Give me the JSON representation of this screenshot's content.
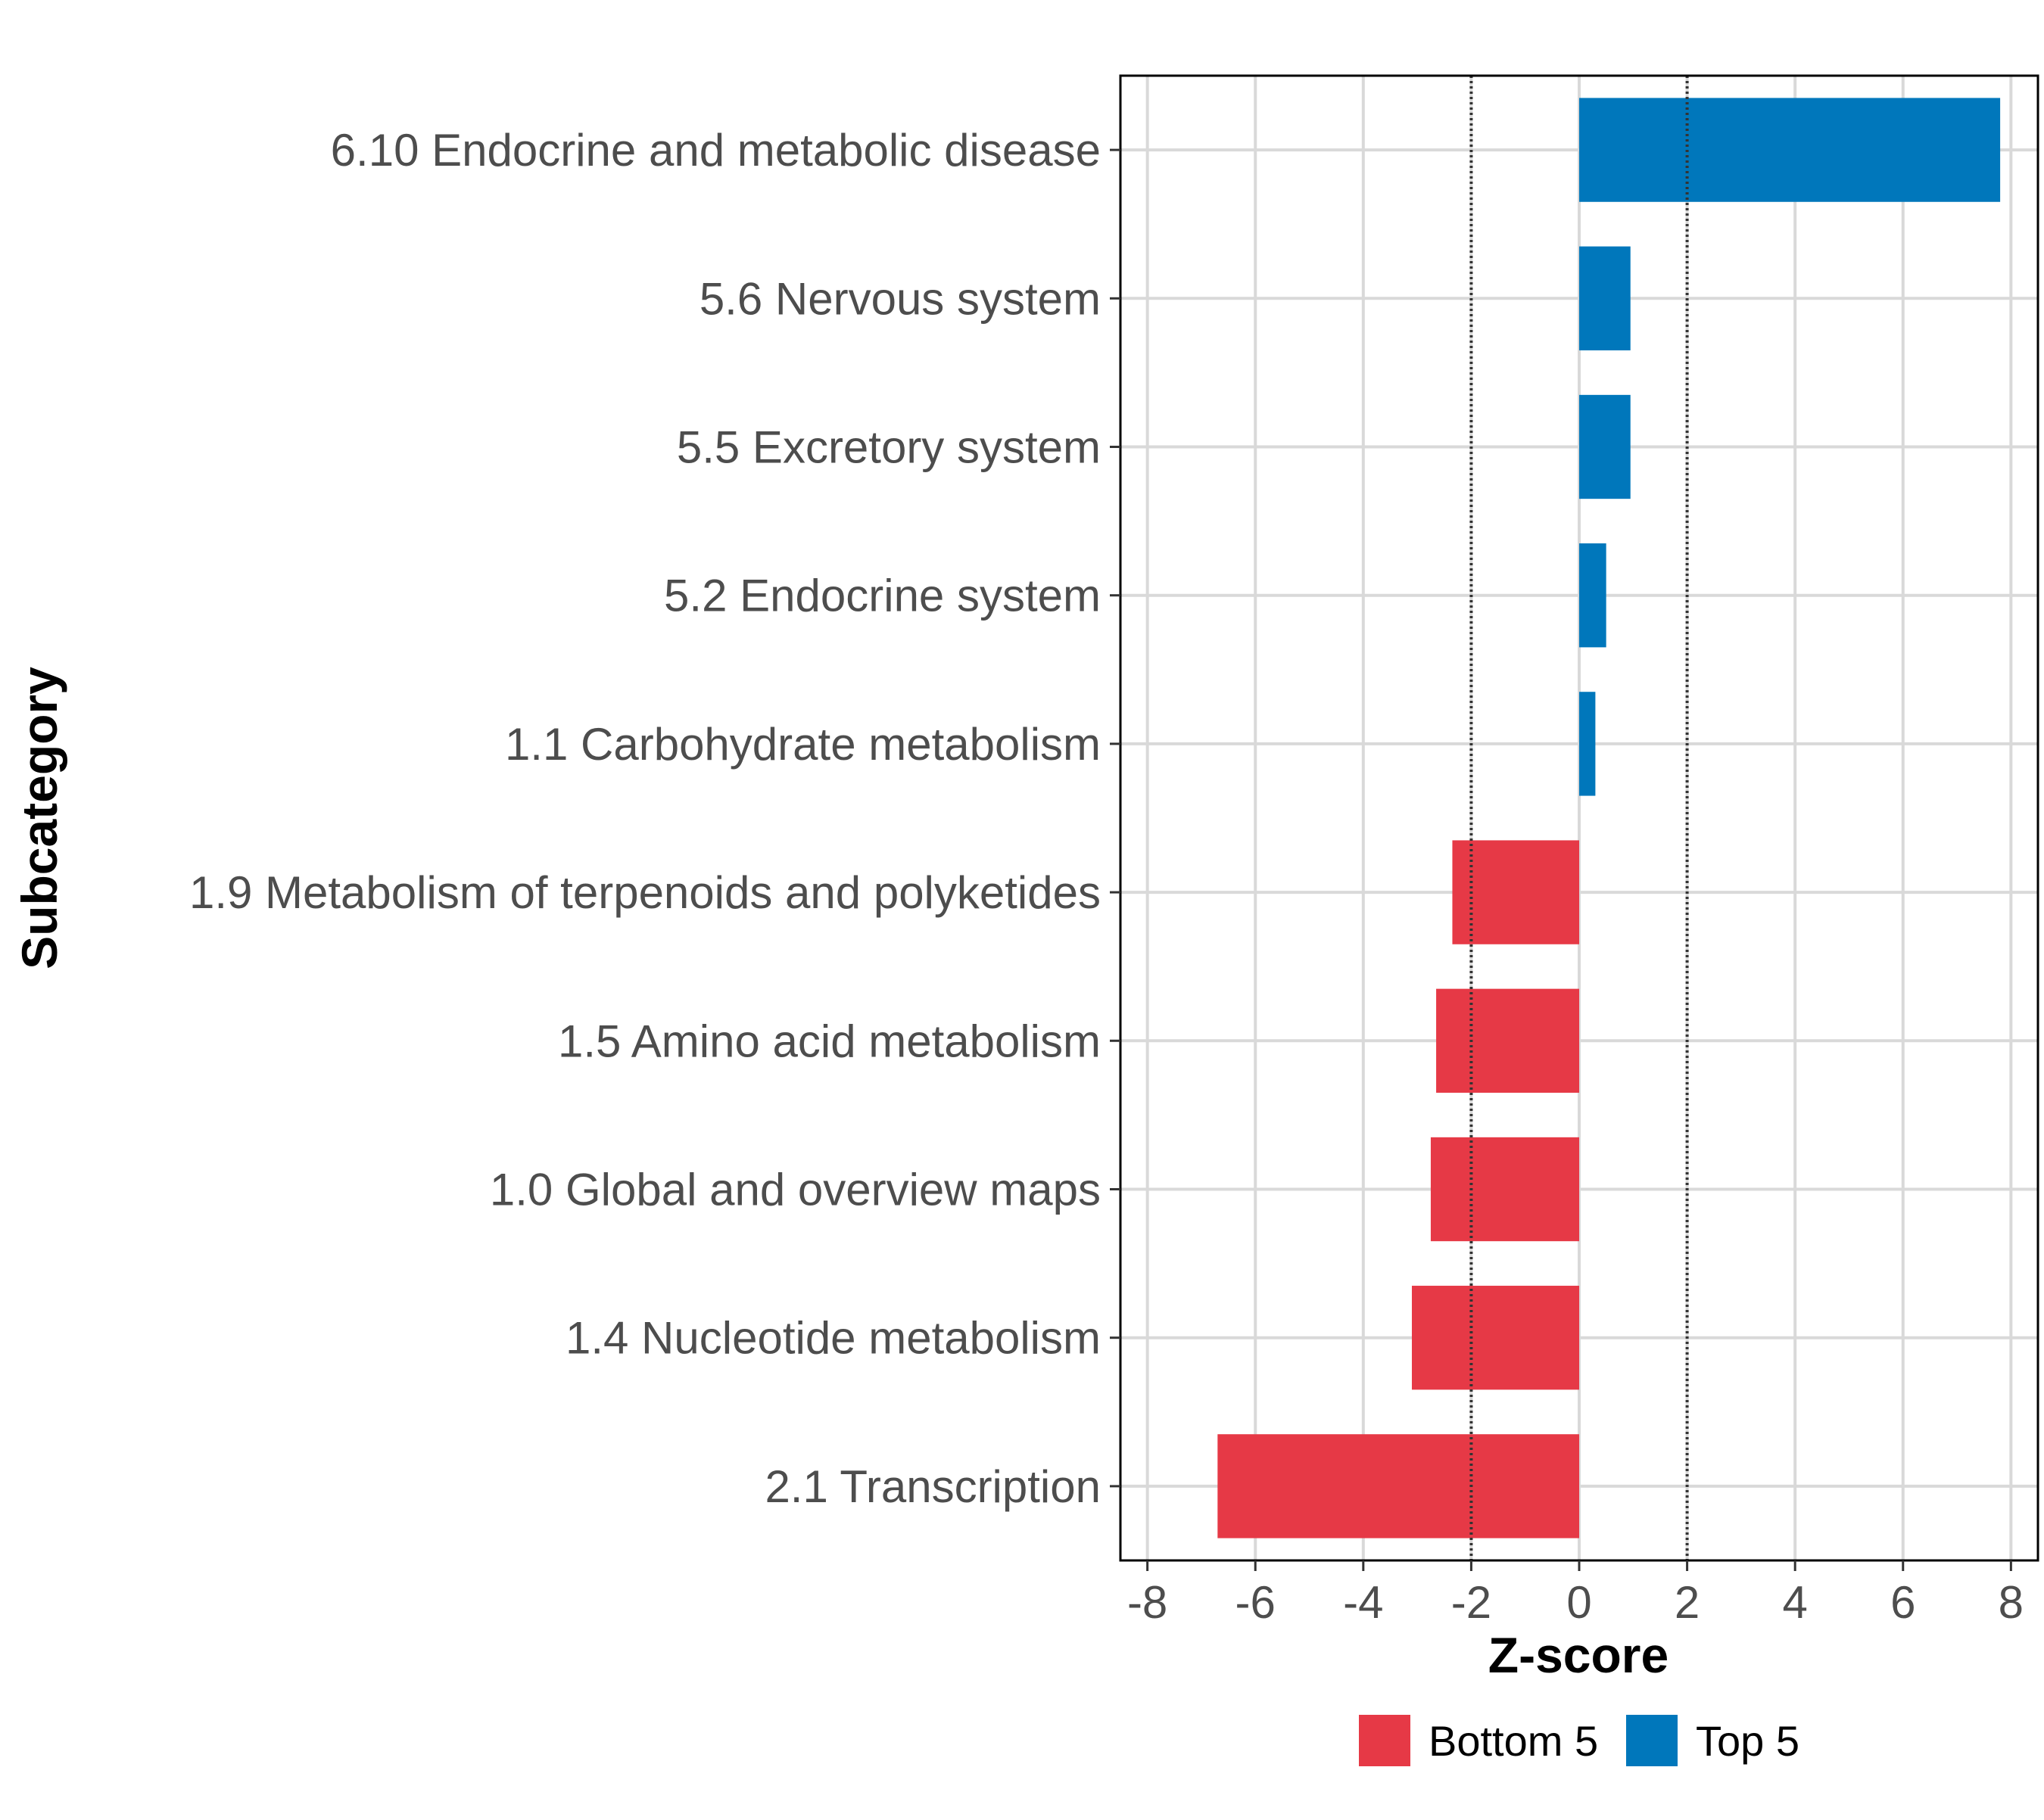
{
  "chart_data": {
    "type": "bar",
    "orientation": "horizontal",
    "xlabel": "Z-score",
    "ylabel": "Subcategory",
    "xlim": [
      -8.5,
      8.5
    ],
    "x_ticks": [
      -8,
      -6,
      -4,
      -2,
      0,
      2,
      4,
      6,
      8
    ],
    "x_tick_labels": [
      "-8",
      "-6",
      "-4",
      "-2",
      "0",
      "2",
      "4",
      "6",
      "8"
    ],
    "reference_lines": [
      -2,
      2
    ],
    "grid": true,
    "categories": [
      "6.10 Endocrine and metabolic disease",
      "5.6 Nervous system",
      "5.5 Excretory system",
      "5.2 Endocrine system",
      "1.1 Carbohydrate metabolism",
      "1.9 Metabolism of terpenoids and polyketides",
      "1.5 Amino acid metabolism",
      "1.0 Global and overview maps",
      "1.4 Nucleotide metabolism",
      "2.1 Transcription"
    ],
    "values": [
      7.8,
      0.95,
      0.95,
      0.5,
      0.3,
      -2.35,
      -2.65,
      -2.75,
      -3.1,
      -6.7
    ],
    "groups": [
      "Top 5",
      "Top 5",
      "Top 5",
      "Top 5",
      "Top 5",
      "Bottom 5",
      "Bottom 5",
      "Bottom 5",
      "Bottom 5",
      "Bottom 5"
    ],
    "legend": [
      {
        "name": "Bottom 5",
        "color": "#e63946"
      },
      {
        "name": "Top 5",
        "color": "#0077bb"
      }
    ],
    "legend_position": "bottom"
  }
}
